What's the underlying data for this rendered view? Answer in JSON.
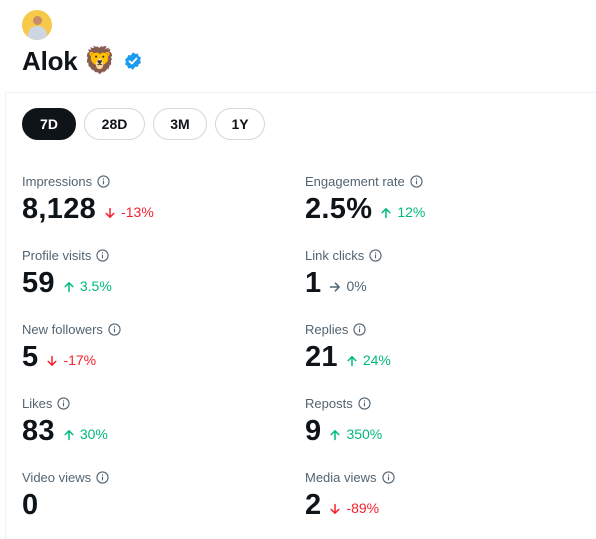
{
  "profile": {
    "name": "Alok",
    "emoji": "🦁"
  },
  "tabs": [
    {
      "label": "7D",
      "active": true
    },
    {
      "label": "28D",
      "active": false
    },
    {
      "label": "3M",
      "active": false
    },
    {
      "label": "1Y",
      "active": false
    }
  ],
  "metrics": {
    "impressions": {
      "label": "Impressions",
      "value": "8,128",
      "delta": "-13%",
      "trend": "down"
    },
    "engagement_rate": {
      "label": "Engagement rate",
      "value": "2.5%",
      "delta": "12%",
      "trend": "up"
    },
    "profile_visits": {
      "label": "Profile visits",
      "value": "59",
      "delta": "3.5%",
      "trend": "up"
    },
    "link_clicks": {
      "label": "Link clicks",
      "value": "1",
      "delta": "0%",
      "trend": "flat"
    },
    "new_followers": {
      "label": "New followers",
      "value": "5",
      "delta": "-17%",
      "trend": "down"
    },
    "replies": {
      "label": "Replies",
      "value": "21",
      "delta": "24%",
      "trend": "up"
    },
    "likes": {
      "label": "Likes",
      "value": "83",
      "delta": "30%",
      "trend": "up"
    },
    "reposts": {
      "label": "Reposts",
      "value": "9",
      "delta": "350%",
      "trend": "up"
    },
    "video_views": {
      "label": "Video views",
      "value": "0",
      "delta": "",
      "trend": "none"
    },
    "media_views": {
      "label": "Media views",
      "value": "2",
      "delta": "-89%",
      "trend": "down"
    }
  },
  "colors": {
    "positive": "#00ba7c",
    "negative": "#f4212e",
    "neutral": "#536471",
    "verified": "#1d9bf0",
    "text": "#0f1419"
  }
}
